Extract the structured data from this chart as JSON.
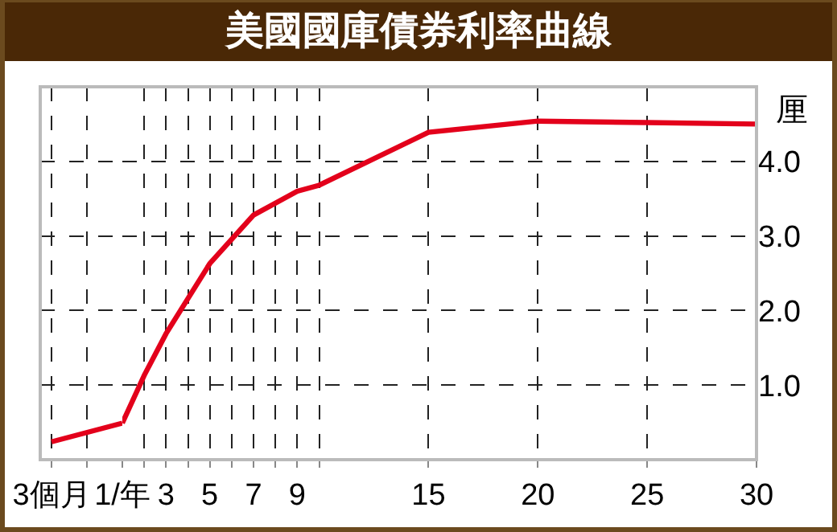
{
  "chart_data": [
    {
      "type": "line",
      "categories": [
        "3個月",
        null,
        "1/年"
      ],
      "series": [
        {
          "color": "#e3001b",
          "values": [
            0.24,
            null,
            0.49
          ]
        }
      ],
      "ylim": [
        0,
        5
      ],
      "yticks": [
        0,
        1,
        2,
        3,
        4,
        5
      ],
      "tick_labels": "x",
      "grid": true,
      "marker": "none",
      "line_style": "solid"
    },
    {
      "type": "line",
      "title": "美國國庫債券利率曲線",
      "ylabel": "厘",
      "x": [
        1,
        2,
        3,
        5,
        7,
        9,
        10,
        15,
        20,
        25,
        30
      ],
      "series": [
        {
          "color": "#e3001b",
          "values": [
            0.49,
            1.13,
            1.69,
            2.63,
            3.28,
            3.6,
            3.68,
            4.39,
            4.54,
            4.52,
            4.5
          ]
        }
      ],
      "xlim": [
        1,
        30
      ],
      "xticks": [
        {
          "value": 1,
          "label": null
        },
        {
          "value": 2,
          "label": null
        },
        3,
        {
          "value": 4,
          "label": null
        },
        5,
        {
          "value": 6,
          "label": null
        },
        7,
        {
          "value": 8,
          "label": null
        },
        9,
        {
          "value": 10,
          "label": null
        },
        15,
        20,
        25,
        30
      ],
      "ylim": [
        0,
        5
      ],
      "yticks": [
        {
          "value": 0,
          "label": null
        },
        {
          "value": 1,
          "label": "1.0"
        },
        {
          "value": 2,
          "label": "2.0"
        },
        {
          "value": 3,
          "label": "3.0"
        },
        {
          "value": 4,
          "label": "4.0"
        },
        {
          "value": 5,
          "label": null
        }
      ],
      "grid": true,
      "marker": "none",
      "line_style": "solid"
    }
  ]
}
